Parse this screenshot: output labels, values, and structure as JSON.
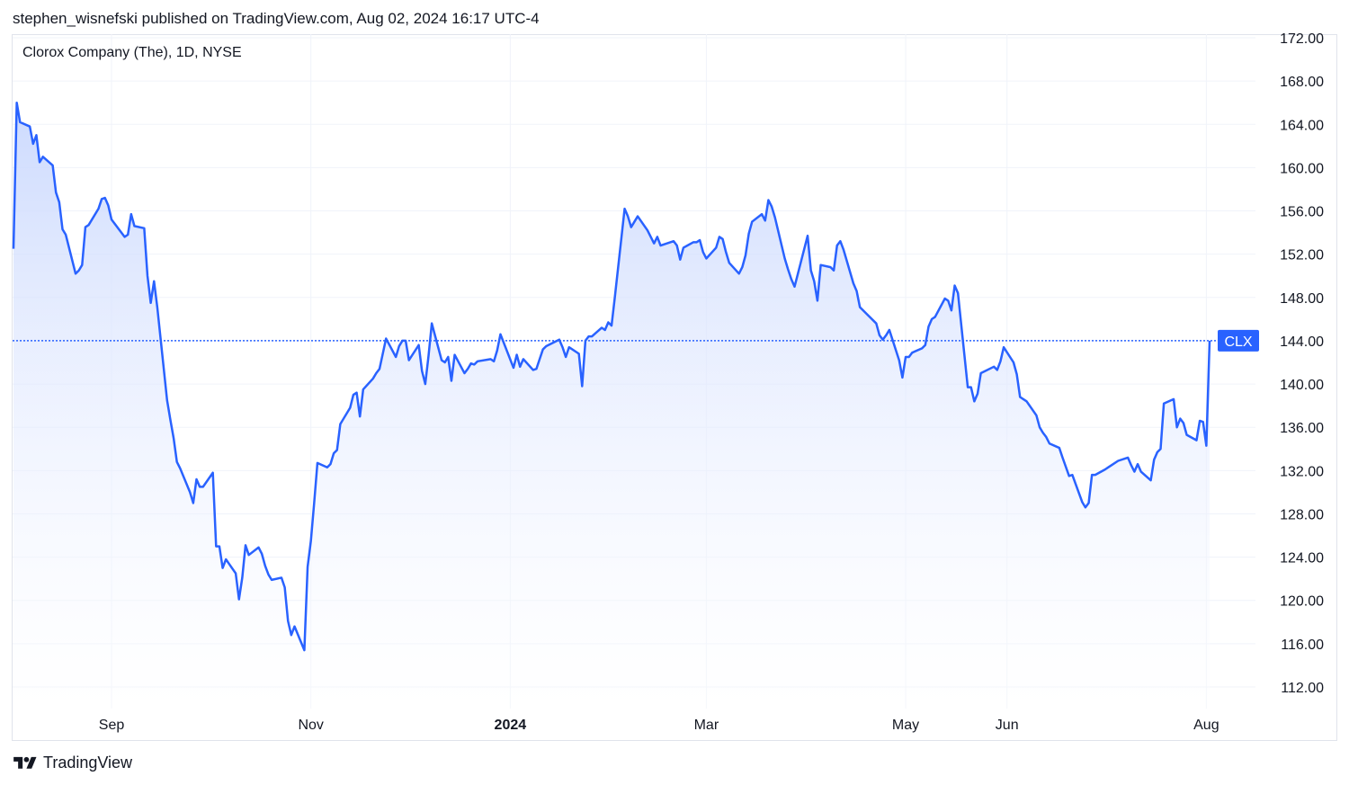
{
  "header": {
    "publish_line": "stephen_wisnefski published on TradingView.com, Aug 02, 2024 16:17 UTC-4"
  },
  "symbol_title": "Clorox Company (The), 1D, NYSE",
  "brand": {
    "name": "TradingView",
    "logo_icon": "tradingview-logo-icon"
  },
  "colors": {
    "line": "#2962ff",
    "area_top": "#c7d6fe",
    "area_bottom": "#ffffff",
    "price_badge": "#2962ff",
    "grid": "#f0f3fa",
    "axis_text": "#131722"
  },
  "chart_data": {
    "type": "area",
    "title": "Clorox Company (The), 1D, NYSE",
    "symbol": "CLX",
    "last_price": 144.0,
    "y_axis_side": "right",
    "ylim": [
      112,
      172
    ],
    "y_ticks": [
      "112.00",
      "116.00",
      "120.00",
      "124.00",
      "128.00",
      "132.00",
      "136.00",
      "140.00",
      "144.00",
      "148.00",
      "152.00",
      "156.00",
      "160.00",
      "164.00",
      "168.00",
      "172.00"
    ],
    "x_ticks": [
      {
        "label": "Sep",
        "date": "2023-09-01",
        "bold": false
      },
      {
        "label": "Nov",
        "date": "2023-11-01",
        "bold": false
      },
      {
        "label": "2024",
        "date": "2024-01-01",
        "bold": true
      },
      {
        "label": "Mar",
        "date": "2024-03-01",
        "bold": false
      },
      {
        "label": "May",
        "date": "2024-05-01",
        "bold": false
      },
      {
        "label": "Jun",
        "date": "2024-06-01",
        "bold": false
      },
      {
        "label": "Aug",
        "date": "2024-08-01",
        "bold": false
      }
    ],
    "grid": true,
    "series": [
      {
        "values": [
          [
            "2023-08-02",
            152.5
          ],
          [
            "2023-08-03",
            166
          ],
          [
            "2023-08-04",
            164.2
          ],
          [
            "2023-08-07",
            163.8
          ],
          [
            "2023-08-08",
            162.2
          ],
          [
            "2023-08-09",
            163
          ],
          [
            "2023-08-10",
            160.5
          ],
          [
            "2023-08-11",
            161
          ],
          [
            "2023-08-14",
            160.2
          ],
          [
            "2023-08-15",
            157.7
          ],
          [
            "2023-08-16",
            156.8
          ],
          [
            "2023-08-17",
            154.3
          ],
          [
            "2023-08-18",
            153.8
          ],
          [
            "2023-08-21",
            150.2
          ],
          [
            "2023-08-22",
            150.5
          ],
          [
            "2023-08-23",
            151
          ],
          [
            "2023-08-24",
            154.5
          ],
          [
            "2023-08-25",
            154.7
          ],
          [
            "2023-08-28",
            156.2
          ],
          [
            "2023-08-29",
            157.1
          ],
          [
            "2023-08-30",
            157.2
          ],
          [
            "2023-08-31",
            156.5
          ],
          [
            "2023-09-01",
            155.2
          ],
          [
            "2023-09-05",
            153.6
          ],
          [
            "2023-09-06",
            153.8
          ],
          [
            "2023-09-07",
            155.7
          ],
          [
            "2023-09-08",
            154.6
          ],
          [
            "2023-09-11",
            154.4
          ],
          [
            "2023-09-12",
            150
          ],
          [
            "2023-09-13",
            147.5
          ],
          [
            "2023-09-14",
            149.5
          ],
          [
            "2023-09-15",
            147.1
          ],
          [
            "2023-09-18",
            138.5
          ],
          [
            "2023-09-19",
            136.7
          ],
          [
            "2023-09-20",
            135
          ],
          [
            "2023-09-21",
            132.8
          ],
          [
            "2023-09-22",
            132.2
          ],
          [
            "2023-09-25",
            130
          ],
          [
            "2023-09-26",
            129
          ],
          [
            "2023-09-27",
            131.2
          ],
          [
            "2023-09-28",
            130.5
          ],
          [
            "2023-09-29",
            130.5
          ],
          [
            "2023-10-02",
            131.8
          ],
          [
            "2023-10-03",
            125
          ],
          [
            "2023-10-04",
            125
          ],
          [
            "2023-10-05",
            123
          ],
          [
            "2023-10-06",
            123.8
          ],
          [
            "2023-10-09",
            122.5
          ],
          [
            "2023-10-10",
            120.1
          ],
          [
            "2023-10-11",
            122.1
          ],
          [
            "2023-10-12",
            125.1
          ],
          [
            "2023-10-13",
            124.2
          ],
          [
            "2023-10-16",
            124.9
          ],
          [
            "2023-10-17",
            124.3
          ],
          [
            "2023-10-18",
            123.2
          ],
          [
            "2023-10-19",
            122.4
          ],
          [
            "2023-10-20",
            121.9
          ],
          [
            "2023-10-23",
            122.1
          ],
          [
            "2023-10-24",
            121.2
          ],
          [
            "2023-10-25",
            118.1
          ],
          [
            "2023-10-26",
            116.8
          ],
          [
            "2023-10-27",
            117.6
          ],
          [
            "2023-10-30",
            115.4
          ],
          [
            "2023-10-31",
            123.1
          ],
          [
            "2023-11-01",
            125.5
          ],
          [
            "2023-11-02",
            129
          ],
          [
            "2023-11-03",
            132.7
          ],
          [
            "2023-11-06",
            132.3
          ],
          [
            "2023-11-07",
            132.6
          ],
          [
            "2023-11-08",
            133.6
          ],
          [
            "2023-11-09",
            133.9
          ],
          [
            "2023-11-10",
            136.3
          ],
          [
            "2023-11-13",
            137.8
          ],
          [
            "2023-11-14",
            139
          ],
          [
            "2023-11-15",
            139.2
          ],
          [
            "2023-11-16",
            137
          ],
          [
            "2023-11-17",
            139.5
          ],
          [
            "2023-11-20",
            140.5
          ],
          [
            "2023-11-21",
            141
          ],
          [
            "2023-11-22",
            141.4
          ],
          [
            "2023-11-24",
            144.2
          ],
          [
            "2023-11-27",
            142.5
          ],
          [
            "2023-11-28",
            143.5
          ],
          [
            "2023-11-29",
            144
          ],
          [
            "2023-11-30",
            144
          ],
          [
            "2023-12-01",
            142.2
          ],
          [
            "2023-12-04",
            143.6
          ],
          [
            "2023-12-05",
            141.2
          ],
          [
            "2023-12-06",
            140
          ],
          [
            "2023-12-07",
            142.6
          ],
          [
            "2023-12-08",
            145.6
          ],
          [
            "2023-12-11",
            142.2
          ],
          [
            "2023-12-12",
            142
          ],
          [
            "2023-12-13",
            142.5
          ],
          [
            "2023-12-14",
            140.3
          ],
          [
            "2023-12-15",
            142.7
          ],
          [
            "2023-12-18",
            141
          ],
          [
            "2023-12-19",
            141.4
          ],
          [
            "2023-12-20",
            141.9
          ],
          [
            "2023-12-21",
            141.8
          ],
          [
            "2023-12-22",
            142.1
          ],
          [
            "2023-12-26",
            142.3
          ],
          [
            "2023-12-27",
            142.1
          ],
          [
            "2023-12-28",
            143.1
          ],
          [
            "2023-12-29",
            144.6
          ],
          [
            "2024-01-02",
            141.5
          ],
          [
            "2024-01-03",
            142.7
          ],
          [
            "2024-01-04",
            141.6
          ],
          [
            "2024-01-05",
            142.3
          ],
          [
            "2024-01-08",
            141.3
          ],
          [
            "2024-01-09",
            141.4
          ],
          [
            "2024-01-10",
            142.3
          ],
          [
            "2024-01-11",
            143.2
          ],
          [
            "2024-01-12",
            143.5
          ],
          [
            "2024-01-16",
            144.1
          ],
          [
            "2024-01-17",
            143.4
          ],
          [
            "2024-01-18",
            142.5
          ],
          [
            "2024-01-19",
            143.4
          ],
          [
            "2024-01-22",
            142.8
          ],
          [
            "2024-01-23",
            139.8
          ],
          [
            "2024-01-24",
            144
          ],
          [
            "2024-01-25",
            144.4
          ],
          [
            "2024-01-26",
            144.4
          ],
          [
            "2024-01-29",
            145.2
          ],
          [
            "2024-01-30",
            145
          ],
          [
            "2024-01-31",
            145.7
          ],
          [
            "2024-02-01",
            145.4
          ],
          [
            "2024-02-02",
            148
          ],
          [
            "2024-02-05",
            156.2
          ],
          [
            "2024-02-06",
            155.5
          ],
          [
            "2024-02-07",
            154.5
          ],
          [
            "2024-02-08",
            155
          ],
          [
            "2024-02-09",
            155.5
          ],
          [
            "2024-02-12",
            154.2
          ],
          [
            "2024-02-13",
            153.6
          ],
          [
            "2024-02-14",
            153
          ],
          [
            "2024-02-15",
            153.6
          ],
          [
            "2024-02-16",
            152.8
          ],
          [
            "2024-02-20",
            153.2
          ],
          [
            "2024-02-21",
            152.8
          ],
          [
            "2024-02-22",
            151.5
          ],
          [
            "2024-02-23",
            152.6
          ],
          [
            "2024-02-26",
            153.1
          ],
          [
            "2024-02-27",
            153.1
          ],
          [
            "2024-02-28",
            153.3
          ],
          [
            "2024-02-29",
            152.2
          ],
          [
            "2024-03-01",
            151.6
          ],
          [
            "2024-03-04",
            152.6
          ],
          [
            "2024-03-05",
            153.6
          ],
          [
            "2024-03-06",
            153.4
          ],
          [
            "2024-03-07",
            152.2
          ],
          [
            "2024-03-08",
            151.2
          ],
          [
            "2024-03-11",
            150.2
          ],
          [
            "2024-03-12",
            150.8
          ],
          [
            "2024-03-13",
            151.9
          ],
          [
            "2024-03-14",
            153.9
          ],
          [
            "2024-03-15",
            155
          ],
          [
            "2024-03-18",
            155.7
          ],
          [
            "2024-03-19",
            155.1
          ],
          [
            "2024-03-20",
            157
          ],
          [
            "2024-03-21",
            156.4
          ],
          [
            "2024-03-22",
            155.4
          ],
          [
            "2024-03-25",
            151.6
          ],
          [
            "2024-03-26",
            150.6
          ],
          [
            "2024-03-27",
            149.7
          ],
          [
            "2024-03-28",
            149
          ],
          [
            "2024-04-01",
            153.7
          ],
          [
            "2024-04-02",
            150.5
          ],
          [
            "2024-04-03",
            149.5
          ],
          [
            "2024-04-04",
            147.7
          ],
          [
            "2024-04-05",
            151
          ],
          [
            "2024-04-08",
            150.8
          ],
          [
            "2024-04-09",
            150.5
          ],
          [
            "2024-04-10",
            152.8
          ],
          [
            "2024-04-11",
            153.2
          ],
          [
            "2024-04-12",
            152.4
          ],
          [
            "2024-04-15",
            149.3
          ],
          [
            "2024-04-16",
            148.6
          ],
          [
            "2024-04-17",
            147.1
          ],
          [
            "2024-04-18",
            146.8
          ],
          [
            "2024-04-19",
            146.5
          ],
          [
            "2024-04-22",
            145.6
          ],
          [
            "2024-04-23",
            144.5
          ],
          [
            "2024-04-24",
            144.1
          ],
          [
            "2024-04-25",
            144.5
          ],
          [
            "2024-04-26",
            145
          ],
          [
            "2024-04-29",
            142.2
          ],
          [
            "2024-04-30",
            140.6
          ],
          [
            "2024-05-01",
            142.5
          ],
          [
            "2024-05-02",
            142.5
          ],
          [
            "2024-05-03",
            142.9
          ],
          [
            "2024-05-06",
            143.3
          ],
          [
            "2024-05-07",
            143.6
          ],
          [
            "2024-05-08",
            145.3
          ],
          [
            "2024-05-09",
            146
          ],
          [
            "2024-05-10",
            146.2
          ],
          [
            "2024-05-13",
            147.9
          ],
          [
            "2024-05-14",
            147.7
          ],
          [
            "2024-05-15",
            146.8
          ],
          [
            "2024-05-16",
            149.1
          ],
          [
            "2024-05-17",
            148.4
          ],
          [
            "2024-05-20",
            139.7
          ],
          [
            "2024-05-21",
            139.7
          ],
          [
            "2024-05-22",
            138.4
          ],
          [
            "2024-05-23",
            139.1
          ],
          [
            "2024-05-24",
            141
          ],
          [
            "2024-05-28",
            141.6
          ],
          [
            "2024-05-29",
            141.3
          ],
          [
            "2024-05-30",
            142.1
          ],
          [
            "2024-05-31",
            143.4
          ],
          [
            "2024-06-03",
            142
          ],
          [
            "2024-06-04",
            140.9
          ],
          [
            "2024-06-05",
            138.8
          ],
          [
            "2024-06-06",
            138.6
          ],
          [
            "2024-06-07",
            138.4
          ],
          [
            "2024-06-10",
            137.1
          ],
          [
            "2024-06-11",
            136
          ],
          [
            "2024-06-12",
            135.5
          ],
          [
            "2024-06-13",
            135.1
          ],
          [
            "2024-06-14",
            134.5
          ],
          [
            "2024-06-17",
            134.1
          ],
          [
            "2024-06-18",
            133.2
          ],
          [
            "2024-06-20",
            131.5
          ],
          [
            "2024-06-21",
            131.6
          ],
          [
            "2024-06-24",
            129.1
          ],
          [
            "2024-06-25",
            128.6
          ],
          [
            "2024-06-26",
            129
          ],
          [
            "2024-06-27",
            131.6
          ],
          [
            "2024-06-28",
            131.6
          ],
          [
            "2024-07-01",
            132.1
          ],
          [
            "2024-07-02",
            132.3
          ],
          [
            "2024-07-03",
            132.5
          ],
          [
            "2024-07-05",
            132.9
          ],
          [
            "2024-07-08",
            133.2
          ],
          [
            "2024-07-09",
            132.5
          ],
          [
            "2024-07-10",
            131.9
          ],
          [
            "2024-07-11",
            132.6
          ],
          [
            "2024-07-12",
            131.9
          ],
          [
            "2024-07-15",
            131.1
          ],
          [
            "2024-07-16",
            133
          ],
          [
            "2024-07-17",
            133.7
          ],
          [
            "2024-07-18",
            134
          ],
          [
            "2024-07-19",
            138.2
          ],
          [
            "2024-07-22",
            138.6
          ],
          [
            "2024-07-23",
            136
          ],
          [
            "2024-07-24",
            136.8
          ],
          [
            "2024-07-25",
            136.4
          ],
          [
            "2024-07-26",
            135.3
          ],
          [
            "2024-07-29",
            134.8
          ],
          [
            "2024-07-30",
            136.6
          ],
          [
            "2024-07-31",
            136.5
          ],
          [
            "2024-08-01",
            134.3
          ],
          [
            "2024-08-02",
            144
          ]
        ]
      }
    ]
  }
}
